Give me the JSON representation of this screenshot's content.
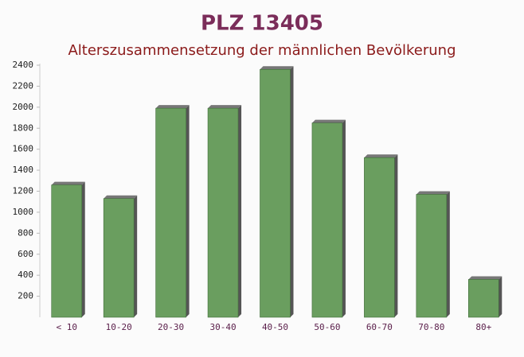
{
  "chart_data": {
    "type": "bar",
    "title": "PLZ 13405",
    "subtitle": "Alterszusammensetzung der männlichen Bevölkerung",
    "categories": [
      "< 10",
      "10-20",
      "20-30",
      "30-40",
      "40-50",
      "50-60",
      "60-70",
      "70-80",
      "80+"
    ],
    "values": [
      1260,
      1130,
      1990,
      1990,
      2360,
      1850,
      1520,
      1170,
      360
    ],
    "color": "#6a9e5f",
    "ylim": [
      0,
      2400
    ],
    "yticks": [
      200,
      400,
      600,
      800,
      1000,
      1200,
      1400,
      1600,
      1800,
      2000,
      2200,
      2400
    ],
    "grid": false
  }
}
